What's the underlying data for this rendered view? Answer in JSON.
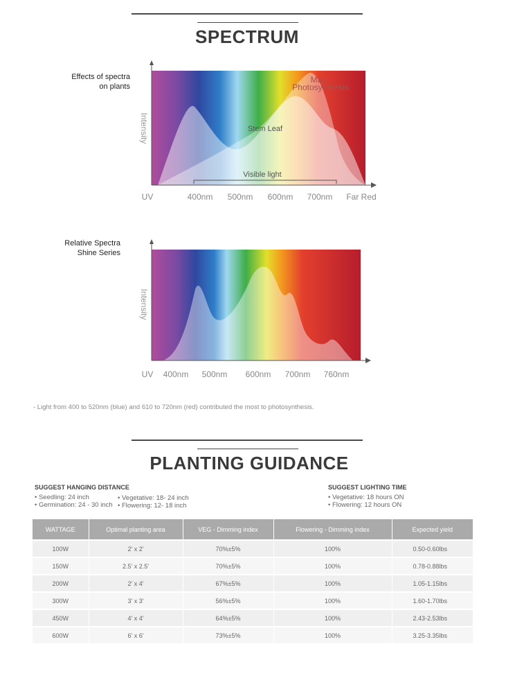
{
  "spectrum": {
    "title": "SPECTRUM",
    "chart1": {
      "side_label_line1": "Effects of spectra",
      "side_label_line2": "on plants",
      "ylabel": "Intensity",
      "annot_max_line1": "Max",
      "annot_max_line2": "Photosynthesis",
      "annot_stem": "Stem Leaf",
      "annot_visible": "Visible light",
      "x_ticks": [
        "UV",
        "400nm",
        "500nm",
        "600nm",
        "700nm",
        "Far Red"
      ]
    },
    "chart2": {
      "side_label_line1": "Relative Spectra",
      "side_label_line2": "Shine  Series",
      "ylabel": "Intensity",
      "x_ticks": [
        "UV",
        "400nm",
        "500nm",
        "600nm",
        "700nm",
        "760nm"
      ]
    },
    "note": "- Light from 400 to 520nm (blue) and 610 to 720nm (red) contributed the most to photosynthesis."
  },
  "guidance": {
    "title": "PLANTING GUIDANCE",
    "hanging": {
      "heading": "SUGGEST HANGING DISTANCE",
      "col1": [
        "Seedling: 24 inch",
        "Germination: 24 - 30 inch"
      ],
      "col2": [
        "Vegetative: 18- 24 inch",
        "Flowering: 12- 18 inch"
      ]
    },
    "lighting": {
      "heading": "SUGGEST LIGHTING TIME",
      "items": [
        "Vegetative: 18 hours ON",
        "Flowering: 12 hours ON"
      ]
    },
    "table": {
      "headers": [
        "WATTAGE",
        "Optimal planting area",
        "VEG - Dimming index",
        "Flowering - Dimming index",
        "Expected yield"
      ],
      "rows": [
        [
          "100W",
          "2' x 2'",
          "70%±5%",
          "100%",
          "0.50-0.60lbs"
        ],
        [
          "150W",
          "2.5' x 2.5'",
          "70%±5%",
          "100%",
          "0.78-0.88lbs"
        ],
        [
          "200W",
          "2' x 4'",
          "67%±5%",
          "100%",
          "1.05-1.15lbs"
        ],
        [
          "300W",
          "3' x 3'",
          "56%±5%",
          "100%",
          "1.60-1.70lbs"
        ],
        [
          "450W",
          "4' x 4'",
          "64%±5%",
          "100%",
          "2.43-2.53lbs"
        ],
        [
          "600W",
          "6' x 6'",
          "73%±5%",
          "100%",
          "3.25-3.35lbs"
        ]
      ]
    }
  },
  "colors": {
    "heading": "#3a3a3a",
    "table_header": "#aaaaaa",
    "spectrum_stops": [
      "#b04c9c",
      "#7a4aa2",
      "#2f48a0",
      "#2f7ec8",
      "#9fd8f0",
      "#3fae49",
      "#e3df2a",
      "#f39a1f",
      "#e3402d",
      "#b61d2d"
    ]
  }
}
